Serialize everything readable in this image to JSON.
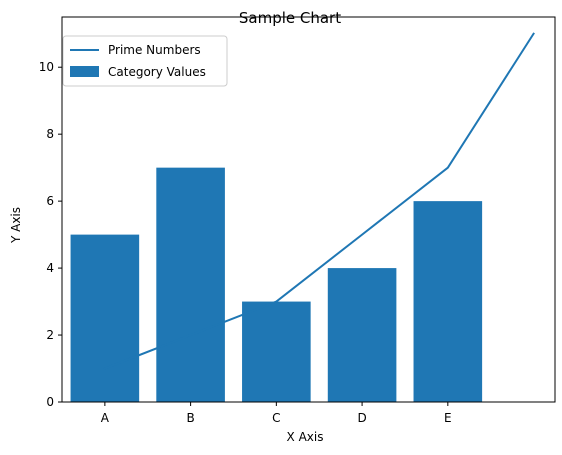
{
  "chart_data": {
    "type": "bar",
    "title": "Sample Chart",
    "xlabel": "X Axis",
    "ylabel": "Y Axis",
    "categories": [
      "A",
      "B",
      "C",
      "D",
      "E"
    ],
    "bar_series": {
      "name": "Category Values",
      "values": [
        5,
        7,
        3,
        4,
        6
      ],
      "color": "#1f77b4"
    },
    "line_series": {
      "name": "Prime Numbers",
      "x": [
        0,
        1,
        2,
        3,
        4,
        5
      ],
      "y": [
        1,
        2,
        3,
        5,
        7,
        11
      ],
      "color": "#1f77b4"
    },
    "ylim": [
      0,
      11.5
    ],
    "yticks": [
      0,
      2,
      4,
      6,
      8,
      10
    ],
    "xlim": [
      -0.5,
      5.25
    ],
    "legend_position": "top-left",
    "grid": false
  }
}
